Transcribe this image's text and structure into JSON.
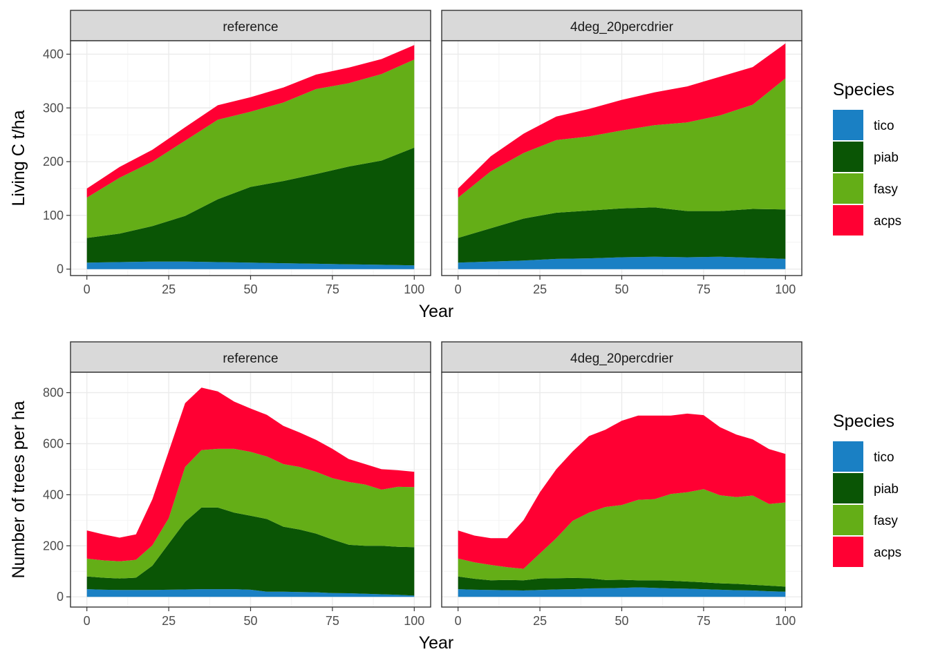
{
  "colors": {
    "tico": "#1a80c4",
    "piab": "#0a5505",
    "fasy": "#64ae17",
    "acps": "#ff0033"
  },
  "chart_data": [
    {
      "type": "area",
      "stacked": true,
      "xlabel": "Year",
      "ylabel": "Living C t/ha",
      "xlim": [
        -5,
        105
      ],
      "ylim": [
        -12,
        425
      ],
      "x_ticks": [
        0,
        25,
        50,
        75,
        100
      ],
      "y_ticks": [
        0,
        100,
        200,
        300,
        400
      ],
      "grid": true,
      "legend": {
        "title": "Species",
        "position": "right",
        "entries": [
          "tico",
          "piab",
          "fasy",
          "acps"
        ]
      },
      "facets": [
        {
          "label": "reference",
          "x": [
            0,
            10,
            20,
            30,
            40,
            50,
            60,
            70,
            80,
            90,
            100
          ],
          "series": [
            {
              "name": "tico",
              "values": [
                12,
                13,
                14,
                14,
                13,
                12,
                11,
                10,
                9,
                8,
                7
              ]
            },
            {
              "name": "piab",
              "values": [
                46,
                53,
                66,
                85,
                117,
                141,
                153,
                167,
                182,
                194,
                219
              ]
            },
            {
              "name": "fasy",
              "values": [
                75,
                104,
                120,
                140,
                148,
                140,
                146,
                158,
                155,
                161,
                164
              ]
            },
            {
              "name": "acps",
              "values": [
                17,
                20,
                22,
                25,
                27,
                27,
                28,
                27,
                29,
                28,
                27
              ]
            }
          ]
        },
        {
          "label": "4deg_20percdrier",
          "x": [
            0,
            10,
            20,
            30,
            40,
            50,
            60,
            70,
            80,
            90,
            100
          ],
          "series": [
            {
              "name": "tico",
              "values": [
                12,
                14,
                16,
                19,
                20,
                22,
                23,
                22,
                23,
                21,
                19
              ]
            },
            {
              "name": "piab",
              "values": [
                46,
                62,
                78,
                86,
                89,
                91,
                92,
                86,
                85,
                91,
                92
              ]
            },
            {
              "name": "fasy",
              "values": [
                75,
                106,
                122,
                135,
                138,
                145,
                153,
                165,
                178,
                194,
                244
              ]
            },
            {
              "name": "acps",
              "values": [
                17,
                28,
                36,
                44,
                51,
                57,
                61,
                67,
                72,
                70,
                65
              ]
            }
          ]
        }
      ]
    },
    {
      "type": "area",
      "stacked": true,
      "xlabel": "Year",
      "ylabel": "Number of trees per ha",
      "xlim": [
        -5,
        105
      ],
      "ylim": [
        -40,
        880
      ],
      "x_ticks": [
        0,
        25,
        50,
        75,
        100
      ],
      "y_ticks": [
        0,
        200,
        400,
        600,
        800
      ],
      "grid": true,
      "legend": {
        "title": "Species",
        "position": "right",
        "entries": [
          "tico",
          "piab",
          "fasy",
          "acps"
        ]
      },
      "facets": [
        {
          "label": "reference",
          "x": [
            0,
            5,
            10,
            15,
            20,
            25,
            30,
            35,
            40,
            45,
            50,
            55,
            60,
            65,
            70,
            75,
            80,
            85,
            90,
            95,
            100
          ],
          "series": [
            {
              "name": "tico",
              "values": [
                30,
                28,
                27,
                27,
                27,
                28,
                29,
                30,
                30,
                30,
                28,
                20,
                20,
                19,
                18,
                15,
                14,
                12,
                10,
                8,
                5
              ]
            },
            {
              "name": "piab",
              "values": [
                50,
                47,
                45,
                48,
                95,
                180,
                265,
                320,
                320,
                300,
                290,
                285,
                255,
                245,
                230,
                210,
                190,
                188,
                190,
                188,
                190
              ]
            },
            {
              "name": "fasy",
              "values": [
                70,
                68,
                67,
                70,
                80,
                100,
                215,
                225,
                230,
                250,
                250,
                245,
                245,
                245,
                242,
                240,
                246,
                240,
                220,
                235,
                235
              ]
            },
            {
              "name": "acps",
              "values": [
                110,
                102,
                93,
                100,
                180,
                262,
                250,
                245,
                225,
                185,
                170,
                163,
                150,
                135,
                125,
                115,
                90,
                80,
                80,
                65,
                60
              ]
            }
          ]
        },
        {
          "label": "4deg_20percdrier",
          "x": [
            0,
            5,
            10,
            15,
            20,
            25,
            30,
            35,
            40,
            45,
            50,
            55,
            60,
            65,
            70,
            75,
            80,
            85,
            90,
            95,
            100
          ],
          "series": [
            {
              "name": "tico",
              "values": [
                30,
                28,
                27,
                26,
                25,
                27,
                29,
                30,
                33,
                34,
                35,
                37,
                35,
                33,
                32,
                30,
                28,
                26,
                25,
                22,
                20
              ]
            },
            {
              "name": "piab",
              "values": [
                50,
                43,
                38,
                40,
                40,
                45,
                44,
                44,
                40,
                32,
                32,
                28,
                30,
                30,
                28,
                27,
                25,
                25,
                22,
                22,
                20
              ]
            },
            {
              "name": "fasy",
              "values": [
                70,
                64,
                60,
                50,
                45,
                98,
                157,
                224,
                257,
                286,
                293,
                315,
                318,
                340,
                350,
                365,
                345,
                340,
                350,
                320,
                330
              ]
            },
            {
              "name": "acps",
              "values": [
                110,
                105,
                105,
                114,
                190,
                240,
                270,
                272,
                300,
                303,
                330,
                330,
                327,
                307,
                308,
                290,
                267,
                245,
                220,
                215,
                190
              ]
            }
          ]
        }
      ]
    }
  ]
}
